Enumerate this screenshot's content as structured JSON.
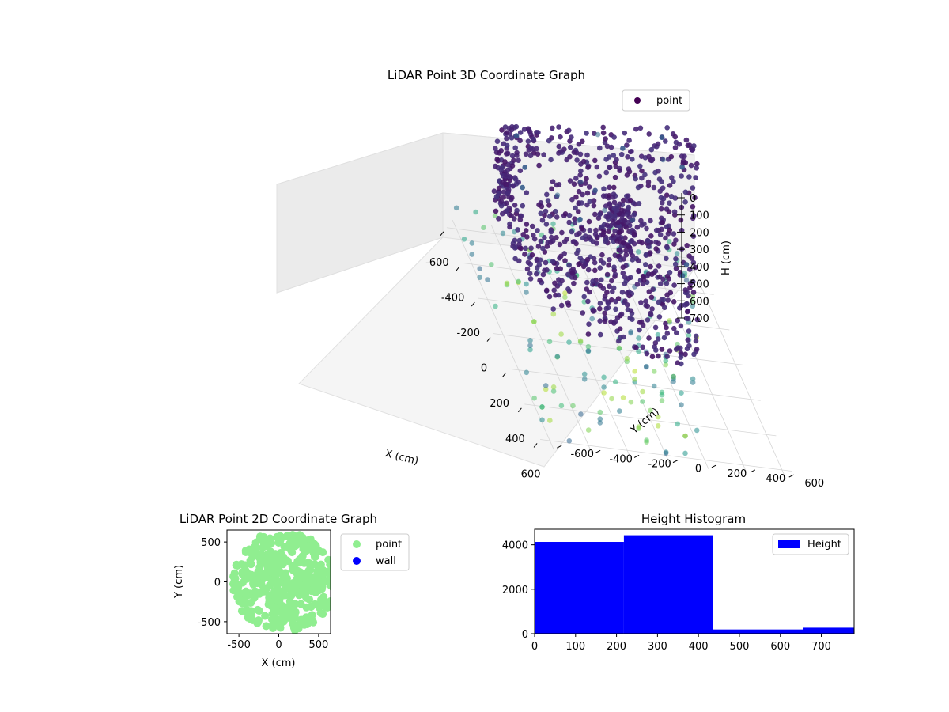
{
  "colors": {
    "scatter3d_low": "#440154",
    "scatter3d_high": "#fde725",
    "scatter2d_point": "#90ee90",
    "scatter2d_wall": "#0000ff",
    "histogram": "#0000ff",
    "pane": "#f2f2f2",
    "grid": "#d6d6d6"
  },
  "chart_data": [
    {
      "type": "scatter",
      "projection": "3d",
      "title": "LiDAR Point 3D Coordinate Graph",
      "xlabel": "X (cm)",
      "ylabel": "Y (cm)",
      "zlabel": "H (cm)",
      "xlim": [
        -650,
        650
      ],
      "ylim": [
        -650,
        650
      ],
      "zlim": [
        0,
        780
      ],
      "z_inverted": true,
      "colormap": "viridis",
      "xticks": [
        "-600",
        "-400",
        "-200",
        "0",
        "200",
        "400",
        "600"
      ],
      "yticks": [
        "-600",
        "-400",
        "-200",
        "0",
        "200",
        "400",
        "600"
      ],
      "zticks": [
        "0",
        "100",
        "200",
        "300",
        "400",
        "500",
        "600",
        "700"
      ],
      "legend": {
        "entries": [
          "point"
        ],
        "placement": "top-right"
      },
      "series": [
        {
          "name": "point",
          "approx_point_count": 9000,
          "description_values": {
            "ring_radius_cm": [
              520,
              600
            ],
            "ring_height_cm": [
              150,
              450
            ],
            "ceiling_grid_height_cm": [
              700,
              780
            ],
            "floor_points_height_cm": [
              0,
              60
            ]
          }
        }
      ]
    },
    {
      "type": "scatter",
      "title": "LiDAR Point 2D Coordinate Graph",
      "xlabel": "X (cm)",
      "ylabel": "Y (cm)",
      "xlim": [
        -650,
        650
      ],
      "ylim": [
        -650,
        650
      ],
      "xticks": [
        "-500",
        "0",
        "500"
      ],
      "yticks": [
        "-500",
        "0",
        "500"
      ],
      "legend": {
        "entries": [
          "point",
          "wall"
        ],
        "placement": "outside-right"
      },
      "series": [
        {
          "name": "point",
          "approx_point_count": 9000
        },
        {
          "name": "wall",
          "approx_point_count": 0
        }
      ]
    },
    {
      "type": "bar",
      "subtype": "histogram",
      "title": "Height Histogram",
      "xlim": [
        0,
        780
      ],
      "ylim": [
        0,
        4700
      ],
      "xticks": [
        "0",
        "100",
        "200",
        "300",
        "400",
        "500",
        "600",
        "700"
      ],
      "yticks": [
        "0",
        "2000",
        "4000"
      ],
      "bin_edges": [
        0,
        218,
        436,
        655,
        780
      ],
      "values": [
        4130,
        4430,
        190,
        270
      ],
      "legend": {
        "entries": [
          "Height"
        ],
        "placement": "top-right"
      },
      "series": [
        {
          "name": "Height",
          "values": [
            4130,
            4430,
            190,
            270
          ]
        }
      ]
    }
  ]
}
